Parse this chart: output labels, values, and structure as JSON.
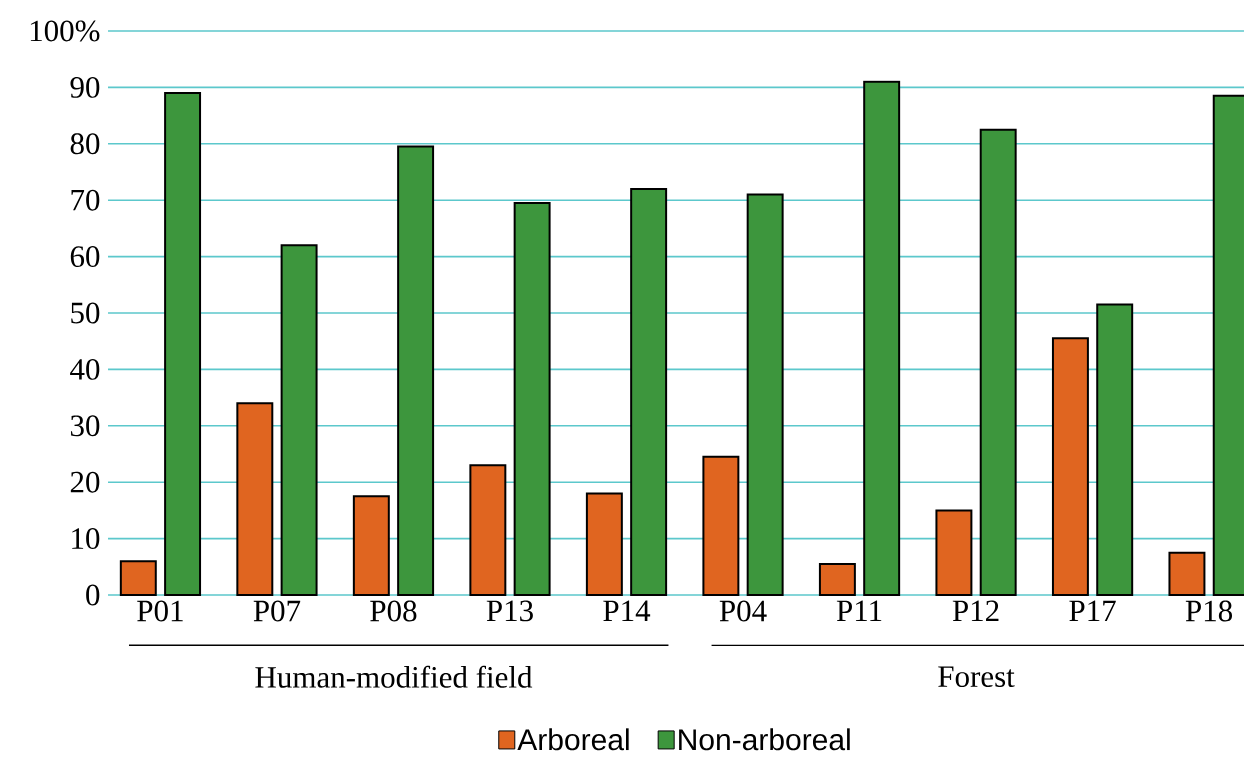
{
  "chart_data": {
    "type": "bar",
    "categories": [
      "P01",
      "P07",
      "P08",
      "P13",
      "P14",
      "P04",
      "P11",
      "P12",
      "P17",
      "P18"
    ],
    "series": [
      {
        "name": "Arboreal",
        "color": "#e06520",
        "values": [
          6,
          34,
          17.5,
          23,
          18,
          24.5,
          5.5,
          15,
          45.5,
          7.5
        ]
      },
      {
        "name": "Non-arboreal",
        "color": "#3d963d",
        "values": [
          89,
          62,
          79.5,
          69.5,
          72,
          71,
          91,
          82.5,
          51.5,
          88.5
        ]
      }
    ],
    "ylim": [
      0,
      100
    ],
    "yticks": [
      0,
      10,
      20,
      30,
      40,
      50,
      60,
      70,
      80,
      90,
      {
        "value": 100,
        "label": "100%"
      }
    ],
    "grid": "y",
    "legend": "bottom",
    "annotations": [
      "Human-modified field",
      "Forest"
    ]
  }
}
